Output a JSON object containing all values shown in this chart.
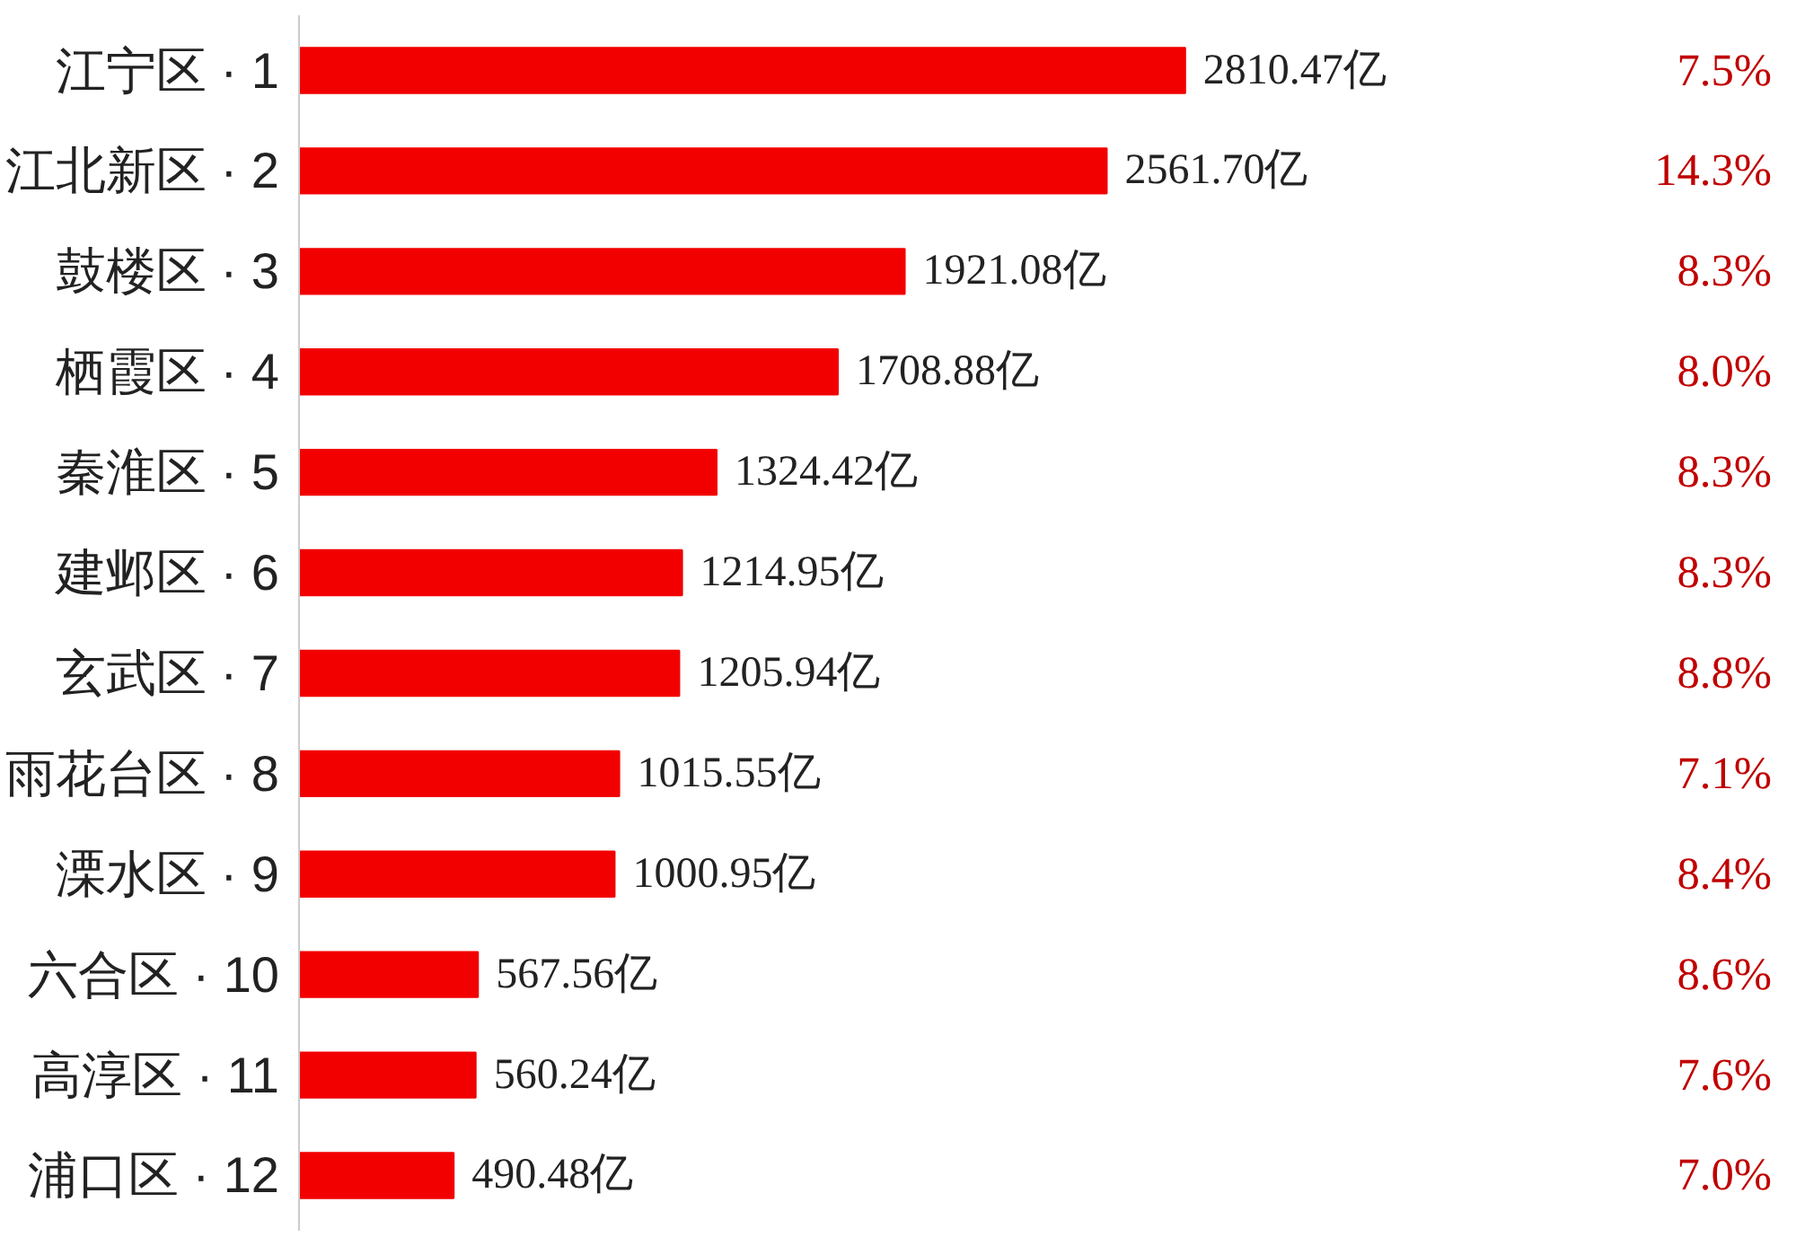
{
  "chart_data": {
    "type": "bar",
    "orientation": "horizontal",
    "categories": [
      "江宁区 · 1",
      "江北新区 · 2",
      "鼓楼区 · 3",
      "栖霞区 · 4",
      "秦淮区 · 5",
      "建邺区 · 6",
      "玄武区 · 7",
      "雨花台区 · 8",
      "溧水区 · 9",
      "六合区 · 10",
      "高淳区 · 11",
      "浦口区 · 12"
    ],
    "values": [
      2810.47,
      2561.7,
      1921.08,
      1708.88,
      1324.42,
      1214.95,
      1205.94,
      1015.55,
      1000.95,
      567.56,
      560.24,
      490.48
    ],
    "value_labels": [
      "2810.47亿",
      "2561.70亿",
      "1921.08亿",
      "1708.88亿",
      "1324.42亿",
      "1214.95亿",
      "1205.94亿",
      "1015.55亿",
      "1000.95亿",
      "567.56亿",
      "560.24亿",
      "490.48亿"
    ],
    "color": "#f20000",
    "tick_labels": "y",
    "annotations": [
      "7.5%",
      "14.3%",
      "8.3%",
      "8.0%",
      "8.3%",
      "8.3%",
      "8.8%",
      "7.1%",
      "8.4%",
      "8.6%",
      "7.6%",
      "7.0%"
    ]
  }
}
